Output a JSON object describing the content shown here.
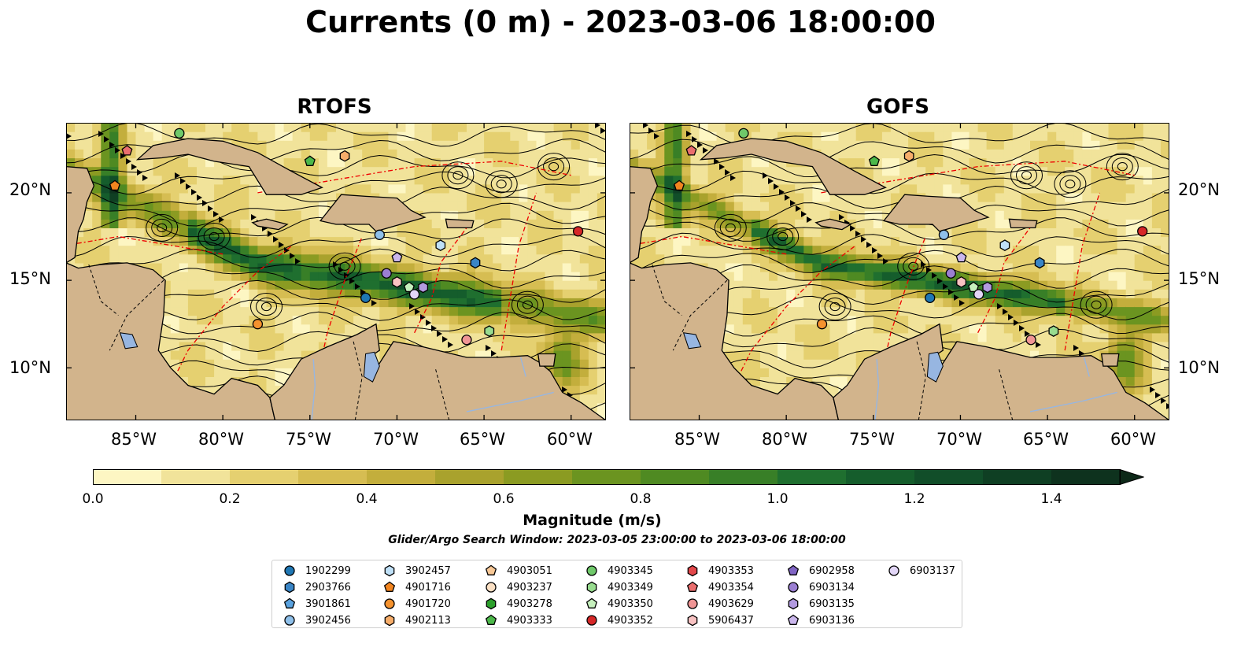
{
  "figure": {
    "title": "Currents (0 m) - 2023-03-06 18:00:00",
    "panels": [
      {
        "title": "RTOFS"
      },
      {
        "title": "GOFS"
      }
    ],
    "lon_labels": [
      "85°W",
      "80°W",
      "75°W",
      "70°W",
      "65°W",
      "60°W"
    ],
    "lat_labels": [
      "20°N",
      "15°N",
      "10°N"
    ],
    "lon_range": [
      -89,
      -58
    ],
    "lat_range": [
      7,
      24
    ]
  },
  "colorbar": {
    "label": "Magnitude (m/s)",
    "ticks": [
      "0.0",
      "0.2",
      "0.4",
      "0.6",
      "0.8",
      "1.0",
      "1.2",
      "1.4"
    ],
    "range": [
      0,
      1.5
    ],
    "extend": "max",
    "colors": [
      "#fdf6c3",
      "#f1e39a",
      "#e5d070",
      "#d6bd52",
      "#c3ae3c",
      "#a9a22d",
      "#8b9b22",
      "#6b9420",
      "#4f8a22",
      "#387f27",
      "#1f6f2f",
      "#155d2c",
      "#114e29",
      "#0f3f23",
      "#0e321e",
      "#0d2818"
    ]
  },
  "search_window": "Glider/Argo Search Window: 2023-03-05 23:00:00 to 2023-03-06 18:00:00",
  "floats": [
    {
      "id": "1902299",
      "marker": "circle",
      "color": "#1f77b4"
    },
    {
      "id": "2903766",
      "marker": "hexagon",
      "color": "#3a85c6"
    },
    {
      "id": "3901861",
      "marker": "pentagon",
      "color": "#5aa2df"
    },
    {
      "id": "3902456",
      "marker": "circle",
      "color": "#8fc0ea"
    },
    {
      "id": "3902457",
      "marker": "hexagon",
      "color": "#bfe0f7"
    },
    {
      "id": "4901716",
      "marker": "pentagon",
      "color": "#f28520"
    },
    {
      "id": "4901720",
      "marker": "circle",
      "color": "#f5922e"
    },
    {
      "id": "4902113",
      "marker": "hexagon",
      "color": "#f6ad6a"
    },
    {
      "id": "4903051",
      "marker": "pentagon",
      "color": "#f8c896"
    },
    {
      "id": "4903237",
      "marker": "circle",
      "color": "#fbe0c4"
    },
    {
      "id": "4903278",
      "marker": "hexagon",
      "color": "#2ca02c"
    },
    {
      "id": "4903333",
      "marker": "pentagon",
      "color": "#4cb84a"
    },
    {
      "id": "4903345",
      "marker": "circle",
      "color": "#6fc96a"
    },
    {
      "id": "4903349",
      "marker": "hexagon",
      "color": "#98dc8f"
    },
    {
      "id": "4903350",
      "marker": "pentagon",
      "color": "#c6f0bd"
    },
    {
      "id": "4903352",
      "marker": "circle",
      "color": "#d62728"
    },
    {
      "id": "4903353",
      "marker": "hexagon",
      "color": "#e2474a"
    },
    {
      "id": "4903354",
      "marker": "pentagon",
      "color": "#ea6e6e"
    },
    {
      "id": "4903629",
      "marker": "circle",
      "color": "#f09595"
    },
    {
      "id": "5906437",
      "marker": "hexagon",
      "color": "#f8c2c2"
    },
    {
      "id": "6902958",
      "marker": "pentagon",
      "color": "#8064c4"
    },
    {
      "id": "6903134",
      "marker": "circle",
      "color": "#9b7fd2"
    },
    {
      "id": "6903135",
      "marker": "hexagon",
      "color": "#b29ae0"
    },
    {
      "id": "6903136",
      "marker": "pentagon",
      "color": "#cab6ec"
    },
    {
      "id": "6903137",
      "marker": "circle",
      "color": "#e2d6f7"
    }
  ],
  "float_positions": [
    {
      "id": "4901716",
      "lon": -86.2,
      "lat": 20.4
    },
    {
      "id": "4903354",
      "lon": -85.5,
      "lat": 22.4
    },
    {
      "id": "4903345",
      "lon": -82.5,
      "lat": 23.4
    },
    {
      "id": "4903333",
      "lon": -75.0,
      "lat": 21.8
    },
    {
      "id": "4902113",
      "lon": -73.0,
      "lat": 22.1
    },
    {
      "id": "3902456",
      "lon": -71.0,
      "lat": 17.6
    },
    {
      "id": "3902457",
      "lon": -67.5,
      "lat": 17.0
    },
    {
      "id": "2903766",
      "lon": -65.5,
      "lat": 16.0
    },
    {
      "id": "4903352",
      "lon": -59.6,
      "lat": 17.8
    },
    {
      "id": "6903136",
      "lon": -70.0,
      "lat": 16.3
    },
    {
      "id": "6903134",
      "lon": -70.6,
      "lat": 15.4
    },
    {
      "id": "5906437",
      "lon": -70.0,
      "lat": 14.9
    },
    {
      "id": "4903350",
      "lon": -69.3,
      "lat": 14.6
    },
    {
      "id": "6903137",
      "lon": -69.0,
      "lat": 14.2
    },
    {
      "id": "6903135",
      "lon": -68.5,
      "lat": 14.6
    },
    {
      "id": "1902299",
      "lon": -71.8,
      "lat": 14.0
    },
    {
      "id": "4901720",
      "lon": -78.0,
      "lat": 12.5
    },
    {
      "id": "4903629",
      "lon": -66.0,
      "lat": 11.6
    },
    {
      "id": "4903349",
      "lon": -64.7,
      "lat": 12.1
    }
  ]
}
